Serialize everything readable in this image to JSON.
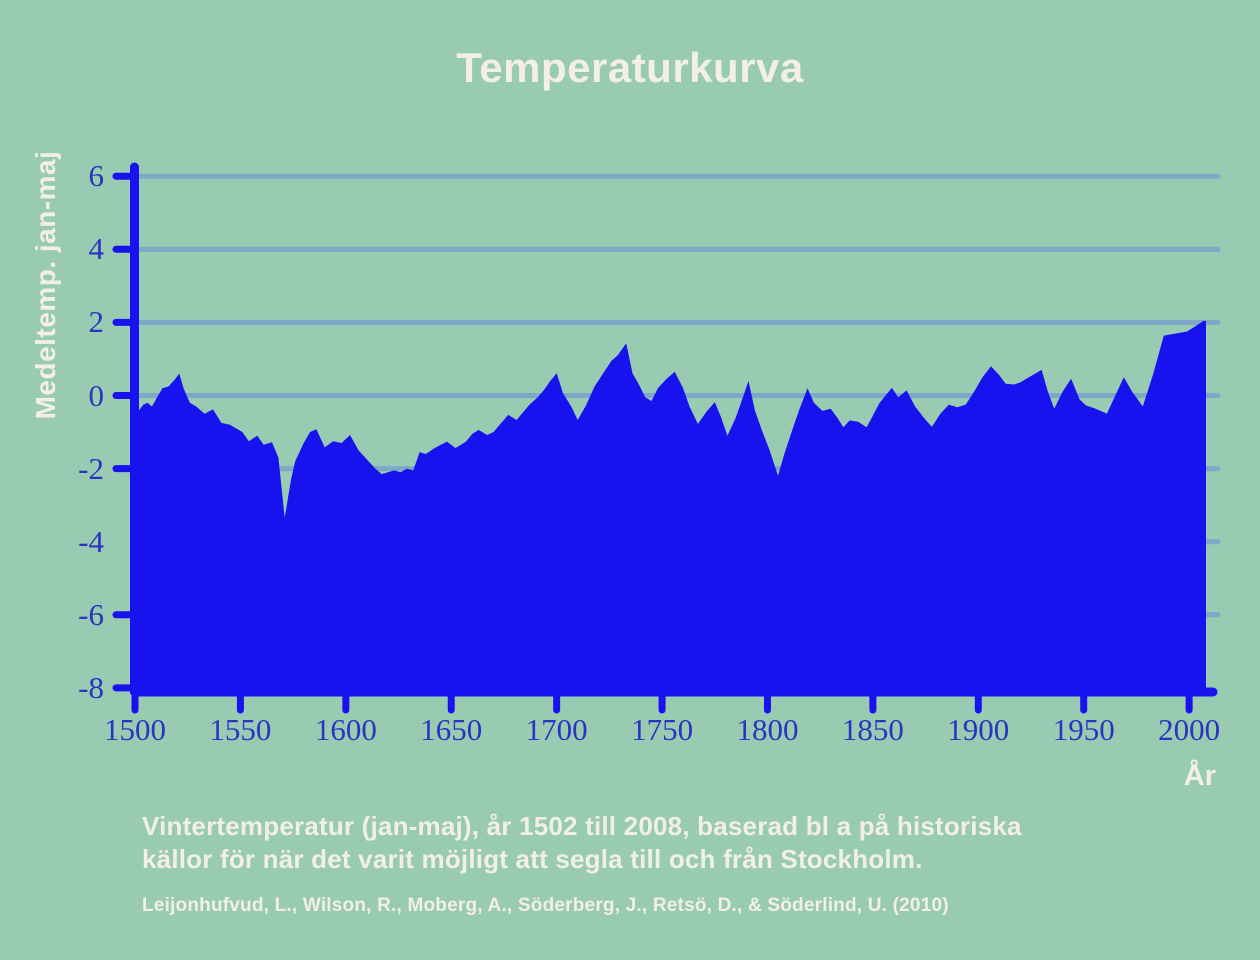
{
  "title": "Temperaturkurva",
  "caption": "Vintertemperatur (jan-maj), år 1502 till 2008, baserad bl a på historiska\nkällor för när det varit möjligt att segla till och från Stockholm.",
  "source": "Leijonhufvud, L., Wilson, R., Moberg, A., Söderberg, J., Retsö, D., & Söderlind, U. (2010)",
  "chart_data": {
    "type": "area",
    "title": "Temperaturkurva",
    "xlabel": "År",
    "ylabel": "Medeltemp. jan-maj",
    "series_name": "Vintertemperatur (jan-maj) Stockholm 1502–2008",
    "xlim": [
      1500,
      2008
    ],
    "ylim": [
      -8,
      6.4
    ],
    "xticks": [
      1500,
      1550,
      1600,
      1650,
      1700,
      1750,
      1800,
      1850,
      1900,
      1950,
      2000
    ],
    "yticks": [
      6,
      4,
      2,
      0,
      -2,
      -4,
      -6,
      -8
    ],
    "grid": "horizontal gridlines at every y tick above -8, drawn behind the filled area",
    "legend": "none",
    "x": [
      1502,
      1504,
      1506,
      1508,
      1511,
      1513,
      1516,
      1519,
      1521,
      1523,
      1526,
      1529,
      1533,
      1537,
      1541,
      1545,
      1548,
      1551,
      1554,
      1558,
      1561,
      1565,
      1568,
      1571,
      1574,
      1576,
      1580,
      1583,
      1586,
      1590,
      1594,
      1598,
      1602,
      1606,
      1610,
      1614,
      1617,
      1620,
      1623,
      1626,
      1629,
      1632,
      1635,
      1638,
      1642,
      1648,
      1652,
      1657,
      1660,
      1663,
      1667,
      1670,
      1673,
      1677,
      1681,
      1687,
      1691,
      1694,
      1697,
      1700,
      1703,
      1707,
      1710,
      1714,
      1718,
      1722,
      1726,
      1729,
      1733,
      1736,
      1739,
      1742,
      1745,
      1748,
      1752,
      1756,
      1760,
      1763,
      1767,
      1771,
      1775,
      1778,
      1781,
      1785,
      1788,
      1791,
      1794,
      1797,
      1801,
      1805,
      1808,
      1812,
      1815,
      1819,
      1822,
      1826,
      1830,
      1833,
      1836,
      1839,
      1843,
      1847,
      1850,
      1853,
      1856,
      1859,
      1862,
      1866,
      1870,
      1874,
      1878,
      1882,
      1886,
      1890,
      1894,
      1898,
      1902,
      1906,
      1910,
      1913,
      1917,
      1920,
      1924,
      1927,
      1930,
      1933,
      1936,
      1940,
      1944,
      1948,
      1951,
      1955,
      1958,
      1961,
      1965,
      1969,
      1973,
      1978,
      1983,
      1988,
      1994,
      1999,
      2003,
      2007,
      2008
    ],
    "values": [
      -0.4,
      -0.25,
      -0.2,
      -0.3,
      0.0,
      0.2,
      0.25,
      0.45,
      0.6,
      0.2,
      -0.2,
      -0.3,
      -0.5,
      -0.38,
      -0.75,
      -0.8,
      -0.9,
      -1.0,
      -1.25,
      -1.1,
      -1.35,
      -1.28,
      -1.7,
      -3.35,
      -2.3,
      -1.8,
      -1.3,
      -1.0,
      -0.92,
      -1.42,
      -1.25,
      -1.3,
      -1.08,
      -1.5,
      -1.75,
      -2.0,
      -2.15,
      -2.1,
      -2.05,
      -2.1,
      -2.0,
      -2.05,
      -1.55,
      -1.6,
      -1.44,
      -1.26,
      -1.44,
      -1.26,
      -1.05,
      -0.94,
      -1.08,
      -1.0,
      -0.8,
      -0.53,
      -0.67,
      -0.26,
      -0.05,
      0.15,
      0.4,
      0.61,
      0.06,
      -0.31,
      -0.67,
      -0.26,
      0.25,
      0.6,
      0.95,
      1.1,
      1.43,
      0.6,
      0.3,
      -0.05,
      -0.15,
      0.2,
      0.45,
      0.65,
      0.2,
      -0.3,
      -0.78,
      -0.45,
      -0.18,
      -0.6,
      -1.1,
      -0.6,
      -0.1,
      0.4,
      -0.4,
      -0.9,
      -1.5,
      -2.2,
      -1.6,
      -0.9,
      -0.4,
      0.2,
      -0.2,
      -0.42,
      -0.36,
      -0.6,
      -0.87,
      -0.68,
      -0.72,
      -0.87,
      -0.55,
      -0.22,
      0.0,
      0.21,
      -0.05,
      0.14,
      -0.3,
      -0.6,
      -0.86,
      -0.5,
      -0.25,
      -0.32,
      -0.25,
      0.1,
      0.5,
      0.8,
      0.55,
      0.32,
      0.3,
      0.36,
      0.5,
      0.6,
      0.7,
      0.1,
      -0.36,
      0.1,
      0.46,
      -0.1,
      -0.27,
      -0.35,
      -0.42,
      -0.5,
      0.0,
      0.5,
      0.1,
      -0.3,
      0.6,
      1.64,
      1.7,
      1.75,
      1.9,
      2.05,
      2.03
    ],
    "colors": {
      "background": "#99cbb2",
      "area": "#1712ee",
      "axis": "#1712ee",
      "gridline": "#7ea7c8",
      "tick_label": "#2b34c0",
      "text": "#f2efe4"
    }
  }
}
